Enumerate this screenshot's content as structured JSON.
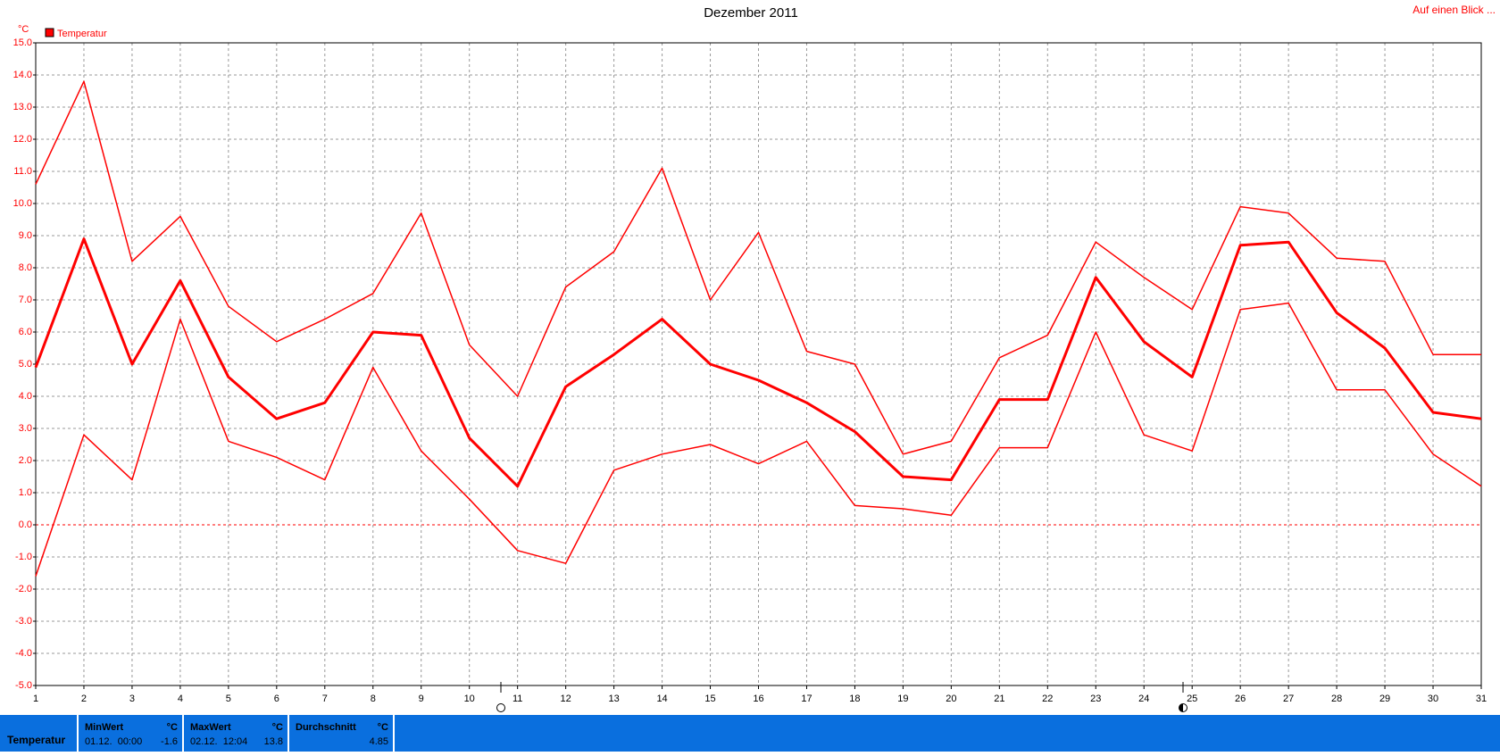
{
  "chart_data": {
    "type": "line",
    "title": "Dezember 2011",
    "corner_link": "Auf einen Blick ...",
    "y_label": "°C",
    "legend": {
      "label": "Temperatur",
      "color": "#ff0000",
      "position": "top-left"
    },
    "x": [
      1,
      2,
      3,
      4,
      5,
      6,
      7,
      8,
      9,
      10,
      11,
      12,
      13,
      14,
      15,
      16,
      17,
      18,
      19,
      20,
      21,
      22,
      23,
      24,
      25,
      26,
      27,
      28,
      29,
      30,
      31
    ],
    "xlim": [
      1,
      31
    ],
    "xticks": [
      1,
      2,
      3,
      4,
      5,
      6,
      7,
      8,
      9,
      10,
      11,
      12,
      13,
      14,
      15,
      16,
      17,
      18,
      19,
      20,
      21,
      22,
      23,
      24,
      25,
      26,
      27,
      28,
      29,
      30,
      31
    ],
    "ylim": [
      -5,
      15
    ],
    "yticks": [
      {
        "value": -5,
        "label": "-5.0"
      },
      {
        "value": -4,
        "label": "-4.0"
      },
      {
        "value": -3,
        "label": "-3.0"
      },
      {
        "value": -2,
        "label": "-2.0"
      },
      {
        "value": -1,
        "label": "-1.0"
      },
      {
        "value": 0,
        "label": "0.0"
      },
      {
        "value": 1,
        "label": "1.0"
      },
      {
        "value": 2,
        "label": "2.0"
      },
      {
        "value": 3,
        "label": "3.0"
      },
      {
        "value": 4,
        "label": "4.0"
      },
      {
        "value": 5,
        "label": "5.0"
      },
      {
        "value": 6,
        "label": "6.0"
      },
      {
        "value": 7,
        "label": "7.0"
      },
      {
        "value": 8,
        "label": "8.0"
      },
      {
        "value": 9,
        "label": "9.0"
      },
      {
        "value": 10,
        "label": "10.0"
      },
      {
        "value": 11,
        "label": "11.0"
      },
      {
        "value": 12,
        "label": "12.0"
      },
      {
        "value": 13,
        "label": "13.0"
      },
      {
        "value": 14,
        "label": "14.0"
      },
      {
        "value": 15,
        "label": "15.0"
      }
    ],
    "grid": true,
    "zero_line": true,
    "series": [
      {
        "color": "#ff0000",
        "width": 1.5,
        "values": [
          10.6,
          13.8,
          8.2,
          9.6,
          6.8,
          5.7,
          6.4,
          7.2,
          9.7,
          5.6,
          4.0,
          7.4,
          8.5,
          11.1,
          7.0,
          9.1,
          5.4,
          5.0,
          2.2,
          2.6,
          5.2,
          5.9,
          8.8,
          7.7,
          6.7,
          9.9,
          9.7,
          8.3,
          8.2,
          5.3,
          5.3
        ]
      },
      {
        "color": "#ff0000",
        "width": 3,
        "values": [
          4.9,
          8.9,
          5.0,
          7.6,
          4.6,
          3.3,
          3.8,
          6.0,
          5.9,
          2.7,
          1.2,
          4.3,
          5.3,
          6.4,
          5.0,
          4.5,
          3.8,
          2.9,
          1.5,
          1.4,
          3.9,
          3.9,
          7.7,
          5.7,
          4.6,
          8.7,
          8.8,
          6.6,
          5.5,
          3.5,
          3.3
        ]
      },
      {
        "color": "#ff0000",
        "width": 1.5,
        "values": [
          -1.6,
          2.8,
          1.4,
          6.4,
          2.6,
          2.1,
          1.4,
          4.9,
          2.3,
          0.8,
          -0.8,
          -1.2,
          1.7,
          2.2,
          2.5,
          1.9,
          2.6,
          0.6,
          0.5,
          0.3,
          2.4,
          2.4,
          6.0,
          2.8,
          2.3,
          6.7,
          6.9,
          4.2,
          4.2,
          2.2,
          1.2
        ]
      }
    ]
  },
  "stats": {
    "label": "Temperatur",
    "columns": [
      {
        "header": "MinWert",
        "unit": "°C",
        "time": "01.12.  00:00",
        "value": -1.6
      },
      {
        "header": "MaxWert",
        "unit": "°C",
        "time": "02.12.  12:04",
        "value": 13.8
      },
      {
        "header": "Durchschnitt",
        "unit": "°C",
        "time": "",
        "value": 4.85
      }
    ]
  }
}
